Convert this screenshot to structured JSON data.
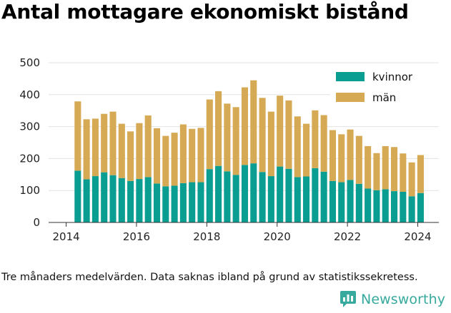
{
  "title": "Antal mottagare ekonomiskt bistånd",
  "footnote": "Tre månaders medelvärden. Data saknas ibland på grund av statistikssekretess.",
  "logo_text": "Newsworthy",
  "colors": {
    "kvinnor": "#0a9e92",
    "man": "#d6aa55",
    "logo": "#37a99d"
  },
  "chart_data": {
    "type": "bar",
    "stacked": true,
    "x": [
      2014.33,
      2014.58,
      2014.83,
      2015.08,
      2015.33,
      2015.58,
      2015.83,
      2016.08,
      2016.33,
      2016.58,
      2016.83,
      2017.08,
      2017.33,
      2017.58,
      2017.83,
      2018.08,
      2018.33,
      2018.58,
      2018.83,
      2019.08,
      2019.33,
      2019.58,
      2019.83,
      2020.08,
      2020.33,
      2020.58,
      2020.83,
      2021.08,
      2021.33,
      2021.58,
      2021.83,
      2022.08,
      2022.33,
      2022.58,
      2022.83,
      2023.08,
      2023.33,
      2023.58,
      2023.83,
      2024.08
    ],
    "series": [
      {
        "name": "kvinnor",
        "values": [
          162,
          135,
          145,
          157,
          148,
          139,
          130,
          136,
          142,
          122,
          113,
          115,
          123,
          126,
          126,
          167,
          177,
          160,
          149,
          180,
          185,
          158,
          145,
          175,
          168,
          142,
          144,
          170,
          159,
          130,
          126,
          133,
          121,
          106,
          101,
          104,
          98,
          96,
          82,
          92
        ]
      },
      {
        "name": "män",
        "values": [
          217,
          188,
          180,
          183,
          199,
          170,
          155,
          175,
          193,
          173,
          158,
          166,
          184,
          167,
          170,
          218,
          234,
          212,
          212,
          243,
          260,
          232,
          202,
          222,
          214,
          190,
          165,
          181,
          177,
          159,
          150,
          158,
          150,
          133,
          116,
          135,
          138,
          120,
          106,
          119
        ]
      }
    ],
    "xticks": [
      "2014",
      "2016",
      "2018",
      "2020",
      "2022",
      "2024"
    ],
    "xtick_values": [
      2014,
      2016,
      2018,
      2020,
      2022,
      2024
    ],
    "yticks": [
      "0",
      "100",
      "200",
      "300",
      "400",
      "500"
    ],
    "ytick_values": [
      0,
      100,
      200,
      300,
      400,
      500
    ],
    "xlim": [
      2013.5,
      2024.6
    ],
    "ylim": [
      0,
      500
    ],
    "grid": "horizontal",
    "legend_position": "top-right",
    "xlabel": "",
    "ylabel": ""
  }
}
